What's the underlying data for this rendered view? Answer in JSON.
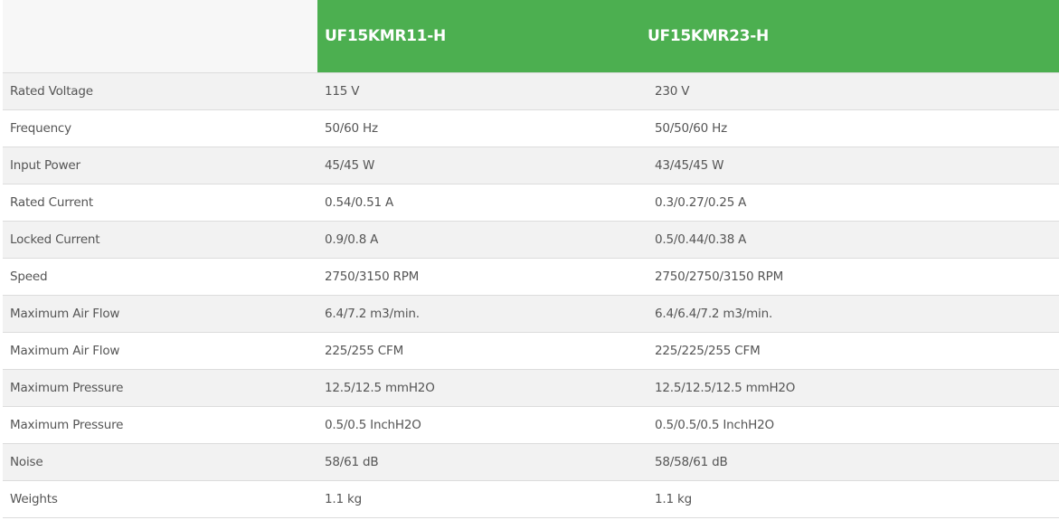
{
  "header": {
    "models": [
      "UF15KMR11-H",
      "UF15KMR23-H"
    ],
    "accent": "#4caf50"
  },
  "rows": [
    {
      "label": "Rated Voltage",
      "v1": "115 V",
      "v2": "230 V"
    },
    {
      "label": "Frequency",
      "v1": "50/60 Hz",
      "v2": "50/50/60 Hz"
    },
    {
      "label": "Input Power",
      "v1": "45/45 W",
      "v2": "43/45/45 W"
    },
    {
      "label": "Rated Current",
      "v1": "0.54/0.51 A",
      "v2": "0.3/0.27/0.25 A"
    },
    {
      "label": "Locked Current",
      "v1": "0.9/0.8 A",
      "v2": "0.5/0.44/0.38 A"
    },
    {
      "label": "Speed",
      "v1": "2750/3150 RPM",
      "v2": "2750/2750/3150 RPM"
    },
    {
      "label": "Maximum Air Flow",
      "v1": "6.4/7.2 m3/min.",
      "v2": "6.4/6.4/7.2 m3/min."
    },
    {
      "label": "Maximum Air Flow",
      "v1": "225/255 CFM",
      "v2": "225/225/255 CFM"
    },
    {
      "label": "Maximum Pressure",
      "v1": "12.5/12.5 mmH2O",
      "v2": "12.5/12.5/12.5 mmH2O"
    },
    {
      "label": "Maximum Pressure",
      "v1": "0.5/0.5 InchH2O",
      "v2": "0.5/0.5/0.5 InchH2O"
    },
    {
      "label": "Noise",
      "v1": "58/61 dB",
      "v2": "58/58/61 dB"
    },
    {
      "label": "Weights",
      "v1": "1.1 kg",
      "v2": "1.1 kg"
    }
  ]
}
